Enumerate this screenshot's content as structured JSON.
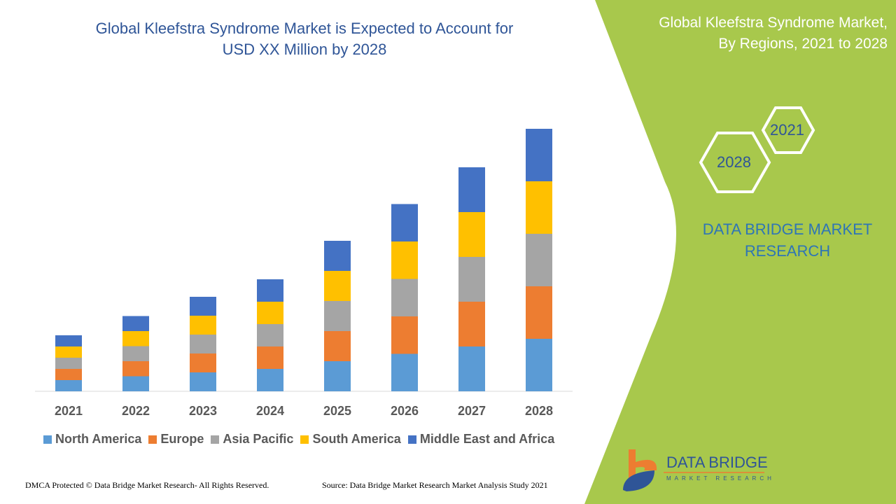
{
  "title": "Global Kleefstra Syndrome Market is Expected to Account for USD XX Million by 2028",
  "title_lines": [
    "Global Kleefstra Syndrome Market is Expected to Account for",
    "USD XX Million by 2028"
  ],
  "side_panel": {
    "title_lines": [
      "Global Kleefstra Syndrome Market,",
      "By Regions, 2021 to 2028"
    ],
    "hex_labels": [
      "2021",
      "2028"
    ],
    "brand_lines": [
      "DATA BRIDGE MARKET",
      "RESEARCH"
    ],
    "logo_text": "DATA BRIDGE",
    "logo_subtext": "MARKET RESEARCH",
    "panel_color": "#a8c84c"
  },
  "footer": {
    "copyright": "DMCA Protected © Data Bridge Market Research- All Rights Reserved.",
    "source": "Source: Data Bridge Market Research Market Analysis Study 2021"
  },
  "chart_data": {
    "type": "bar",
    "stacked": true,
    "title": "Global Kleefstra Syndrome Market is Expected to Account for USD XX Million by 2028",
    "xlabel": "",
    "ylabel": "",
    "y_axis_shown": false,
    "grid": false,
    "legend_placement": "bottom",
    "ylim": [
      0,
      80
    ],
    "categories": [
      "2021",
      "2022",
      "2023",
      "2024",
      "2025",
      "2026",
      "2027",
      "2028"
    ],
    "series": [
      {
        "name": "North America",
        "color": "#5b9bd5",
        "values": [
          3.2,
          4.3,
          5.4,
          6.4,
          8.6,
          10.7,
          12.8,
          15.0
        ]
      },
      {
        "name": "Europe",
        "color": "#ed7d31",
        "values": [
          3.2,
          4.3,
          5.4,
          6.4,
          8.6,
          10.7,
          12.8,
          15.0
        ]
      },
      {
        "name": "Asia Pacific",
        "color": "#a5a5a5",
        "values": [
          3.2,
          4.3,
          5.4,
          6.4,
          8.6,
          10.7,
          12.8,
          15.0
        ]
      },
      {
        "name": "South America",
        "color": "#ffc000",
        "values": [
          3.2,
          4.3,
          5.4,
          6.4,
          8.6,
          10.7,
          12.8,
          15.0
        ]
      },
      {
        "name": "Middle East and Africa",
        "color": "#4472c4",
        "values": [
          3.2,
          4.3,
          5.4,
          6.4,
          8.6,
          10.7,
          12.8,
          15.0
        ]
      }
    ]
  }
}
